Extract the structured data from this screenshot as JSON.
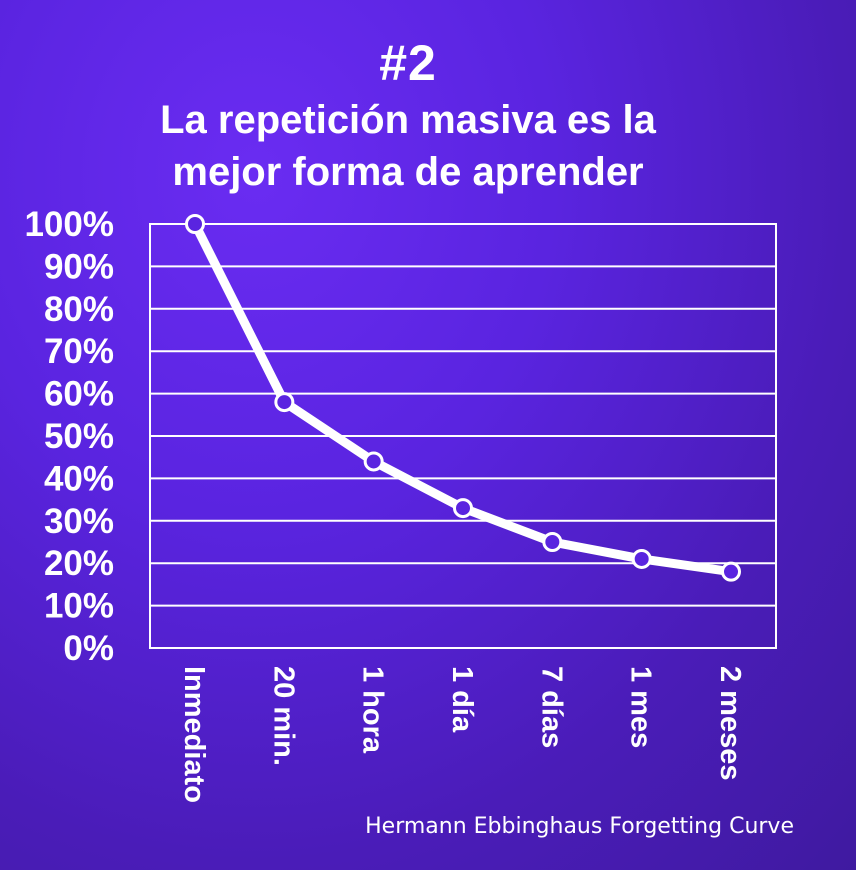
{
  "header": {
    "number": "#2",
    "title_line_1": "La repetición masiva es la",
    "title_line_2": "mejor forma de aprender"
  },
  "caption": "Hermann Ebbinghaus Forgetting Curve",
  "colors": {
    "background": "#5a24e0",
    "line": "#ffffff",
    "grid": "#ffffff",
    "marker_fill": "#5a24e0"
  },
  "chart_data": {
    "type": "line",
    "title": "",
    "xlabel": "",
    "ylabel": "",
    "categories": [
      "Inmediato",
      "20 min.",
      "1 hora",
      "1 día",
      "7 días",
      "1 mes",
      "2 meses"
    ],
    "series": [
      {
        "values": [
          100,
          58,
          44,
          33,
          25,
          21,
          18
        ]
      }
    ],
    "ylim": [
      0,
      100
    ],
    "yticks": [
      0,
      10,
      20,
      30,
      40,
      50,
      60,
      70,
      80,
      90,
      100
    ],
    "ytick_labels": [
      "0%",
      "10%",
      "20%",
      "30%",
      "40%",
      "50%",
      "60%",
      "70%",
      "80%",
      "90%",
      "100%"
    ],
    "grid": true,
    "legend": "none"
  }
}
